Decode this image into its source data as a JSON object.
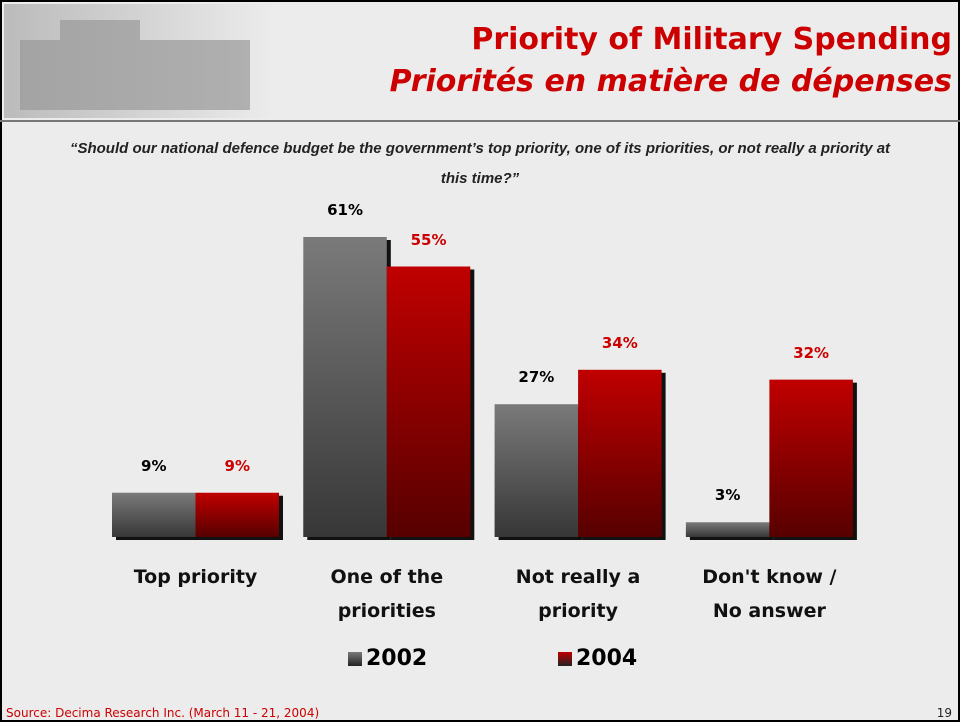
{
  "header": {
    "title": "Priority of Military Spending",
    "subtitle": "Priorités en matière de dépenses"
  },
  "chart_data": {
    "type": "bar",
    "question": "“Should our national defence budget be the government’s top priority, one of its priorities, or not really a priority at this time?”",
    "categories": [
      "Top priority",
      "One of the priorities",
      "Not really a priority",
      "Don't know / No answer"
    ],
    "series": [
      {
        "name": "2002",
        "color": "#7a7a7a",
        "values": [
          9,
          61,
          27,
          3
        ],
        "value_labels": [
          "9%",
          "61%",
          "27%",
          "3%"
        ],
        "label_color": "#000000"
      },
      {
        "name": "2004",
        "color": "#c00000",
        "values": [
          9,
          55,
          34,
          32
        ],
        "value_labels": [
          "9%",
          "55%",
          "34%",
          "32%"
        ],
        "label_color": "#cc0000"
      }
    ]
  },
  "footer": {
    "source": "Source: Decima Research Inc. (March 11 - 21, 2004)",
    "page": "19"
  }
}
